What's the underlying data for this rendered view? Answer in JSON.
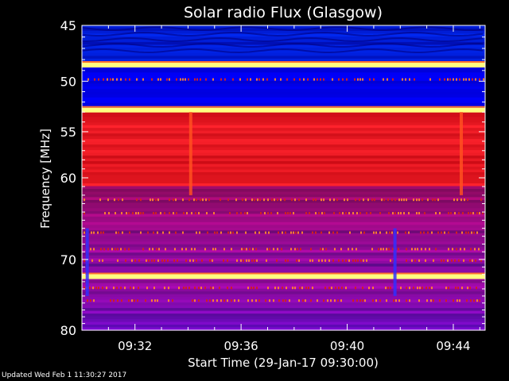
{
  "chart_data": {
    "type": "heatmap",
    "title": "Solar radio Flux (Glasgow)",
    "xlabel": "Start Time (29-Jan-17 09:30:00)",
    "ylabel": "Frequency [MHz]",
    "x_ticks": [
      "09:32",
      "09:36",
      "09:40",
      "09:44"
    ],
    "x_tick_minutes": [
      2,
      6,
      10,
      14
    ],
    "xlim_minutes": [
      0,
      15.2
    ],
    "y_ticks": [
      45,
      50,
      55,
      60,
      70,
      80
    ],
    "ylim": [
      45,
      80
    ],
    "y_scale": "log",
    "colors": {
      "background_low": "#1010d0",
      "band_low": "#0000ff",
      "band_high": "#ee1010",
      "hot": "#ffff80"
    },
    "bright_lines_mhz": [
      48.5,
      52.8,
      72.3
    ],
    "spikes_minutes": [
      0.2,
      4.1,
      11.8,
      14.3
    ]
  },
  "footer": {
    "updated": "Updated Wed Feb  1 11:30:27 2017"
  }
}
